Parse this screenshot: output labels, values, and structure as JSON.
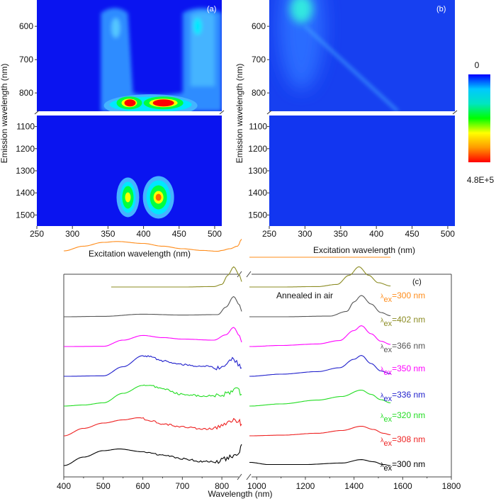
{
  "chart_data": [
    {
      "id": "a",
      "type": "heatmap",
      "panel_label": "(a)",
      "xlabel": "Excitation wavelength (nm)",
      "ylabel": "Emission wavelength (nm)",
      "xlim": [
        250,
        510
      ],
      "ylim_upper": [
        521,
        855
      ],
      "ylim_lower": [
        1050,
        1550
      ],
      "y_axis_break": [
        855,
        1050
      ],
      "x_ticks": [
        250,
        300,
        350,
        400,
        450,
        500
      ],
      "y_ticks_upper": [
        600,
        700,
        800
      ],
      "y_ticks_lower": [
        1100,
        1200,
        1300,
        1400,
        1500
      ],
      "peaks": [
        {
          "ex": 380,
          "em": 830,
          "level": 1.0
        },
        {
          "ex": 428,
          "em": 830,
          "level": 1.0
        },
        {
          "ex": 378,
          "em": 1420,
          "level": 0.8
        },
        {
          "ex": 421,
          "em": 1420,
          "level": 0.92
        },
        {
          "ex": 361,
          "em": 610,
          "level": 0.25
        },
        {
          "ex": 476,
          "em": 605,
          "level": 0.3
        }
      ],
      "background_level": 0
    },
    {
      "id": "b",
      "type": "heatmap",
      "panel_label": "(b)",
      "xlabel": "Excitation wavelength (nm)",
      "ylabel": "Emission wavelength (nm)",
      "xlim": [
        250,
        510
      ],
      "ylim_upper": [
        521,
        855
      ],
      "ylim_lower": [
        1050,
        1550
      ],
      "y_axis_break": [
        855,
        1050
      ],
      "x_ticks": [
        250,
        300,
        350,
        400,
        450,
        500
      ],
      "y_ticks_upper": [
        600,
        700,
        800
      ],
      "y_ticks_lower": [
        1100,
        1200,
        1300,
        1400,
        1500
      ],
      "peaks": [
        {
          "ex": 295,
          "em": 545,
          "level": 0.35
        }
      ],
      "scatter_line": {
        "from_ex": 300,
        "from_em": 600,
        "to_ex": 430,
        "to_em": 855
      },
      "background_level": 0.05
    },
    {
      "id": "colorbar",
      "type": "colorbar",
      "min_label": "0",
      "max_label": "4.8E+5",
      "min": 0,
      "max": 480000,
      "stops": [
        "#0000ff",
        "#00c8ff",
        "#00e5c0",
        "#00ff00",
        "#ffff00",
        "#ff9900",
        "#ff0000"
      ]
    },
    {
      "id": "c",
      "type": "line",
      "panel_label": "(c)",
      "annotation": "Annealed in air",
      "xlabel": "Wavelength (nm)",
      "ylabel": "",
      "x_axis_break": [
        850,
        970
      ],
      "xlim_left": [
        400,
        850
      ],
      "xlim_right": [
        970,
        1800
      ],
      "x_ticks_left": [
        400,
        500,
        600,
        700,
        800
      ],
      "x_ticks_right": [
        1000,
        1200,
        1400,
        1600,
        1800
      ],
      "legend_position": "right",
      "series": [
        {
          "name": "λex=300 nm",
          "lambda": "300 nm",
          "color": "#ff8c1a",
          "offset": 7,
          "left": {
            "x": [
              400,
              450,
              500,
              535,
              600,
              650,
              700,
              750,
              790,
              800,
              820,
              840,
              850
            ],
            "y": [
              0.3,
              0.52,
              0.7,
              0.74,
              0.65,
              0.52,
              0.4,
              0.32,
              0.28,
              0.32,
              0.4,
              0.52,
              0.85
            ]
          },
          "right": {
            "x": [
              970,
              1550
            ],
            "y": [
              0.0,
              0.0
            ]
          }
        },
        {
          "name": "λex=402 nm",
          "lambda": "402 nm",
          "color": "#8b8b22",
          "offset": 6,
          "left": {
            "x": [
              520,
              700,
              780,
              800,
              815,
              830,
              845,
              850
            ],
            "y": [
              0.0,
              0.0,
              0.02,
              0.12,
              0.55,
              0.95,
              0.55,
              0.25
            ]
          },
          "right": {
            "x": [
              970,
              1100,
              1250,
              1330,
              1380,
              1420,
              1460,
              1500,
              1550
            ],
            "y": [
              0.0,
              0.0,
              0.02,
              0.12,
              0.55,
              0.95,
              0.55,
              0.2,
              0.05
            ]
          }
        },
        {
          "name": "λex=366 nm",
          "lambda": "366 nm",
          "color": "#555555",
          "offset": 5,
          "left": {
            "x": [
              400,
              500,
              600,
              700,
              790,
              810,
              830,
              845,
              850
            ],
            "y": [
              0.0,
              0.02,
              0.12,
              0.08,
              0.1,
              0.45,
              0.95,
              0.55,
              0.25
            ]
          },
          "right": {
            "x": [
              970,
              1100,
              1300,
              1370,
              1400,
              1430,
              1470,
              1510,
              1550
            ],
            "y": [
              0.0,
              0.0,
              0.03,
              0.25,
              0.7,
              1.0,
              0.6,
              0.2,
              0.05
            ]
          }
        },
        {
          "name": "λex=350 nm",
          "lambda": "350 nm",
          "color": "#ff00ff",
          "offset": 4,
          "left": {
            "x": [
              400,
              500,
              550,
              600,
              650,
              700,
              780,
              810,
              830,
              845,
              850
            ],
            "y": [
              0.0,
              0.01,
              0.3,
              0.52,
              0.42,
              0.35,
              0.3,
              0.55,
              0.9,
              0.5,
              0.2
            ]
          },
          "right": {
            "x": [
              970,
              1100,
              1250,
              1340,
              1400,
              1430,
              1470,
              1510,
              1550
            ],
            "y": [
              0.0,
              0.05,
              0.12,
              0.28,
              0.75,
              0.98,
              0.6,
              0.25,
              0.1
            ]
          }
        },
        {
          "name": "λex=336 nm",
          "lambda": "336 nm",
          "color": "#2020cc",
          "offset": 3,
          "left": {
            "x": [
              400,
              500,
              550,
              600,
              620,
              650,
              700,
              750,
              790,
              810,
              830,
              845,
              850
            ],
            "y": [
              0.0,
              0.02,
              0.45,
              0.97,
              0.92,
              0.72,
              0.55,
              0.48,
              0.4,
              0.55,
              0.8,
              0.5,
              0.4
            ]
          },
          "right": {
            "x": [
              970,
              1100,
              1250,
              1340,
              1400,
              1430,
              1470,
              1510,
              1550
            ],
            "y": [
              0.0,
              0.1,
              0.22,
              0.4,
              0.8,
              0.98,
              0.6,
              0.25,
              0.12
            ]
          }
        },
        {
          "name": "λex=320 nm",
          "lambda": "320 nm",
          "color": "#22dd22",
          "offset": 2,
          "left": {
            "x": [
              400,
              450,
              500,
              550,
              600,
              620,
              650,
              700,
              750,
              790,
              820,
              840,
              850
            ],
            "y": [
              0.0,
              0.05,
              0.15,
              0.6,
              0.97,
              0.95,
              0.8,
              0.55,
              0.48,
              0.48,
              0.65,
              0.8,
              0.55
            ]
          },
          "right": {
            "x": [
              970,
              1100,
              1250,
              1350,
              1430,
              1470,
              1510,
              1550
            ],
            "y": [
              0.0,
              0.1,
              0.28,
              0.45,
              0.75,
              0.55,
              0.3,
              0.15
            ]
          }
        },
        {
          "name": "λex=308 nm",
          "lambda": "308 nm",
          "color": "#ee2222",
          "offset": 1,
          "left": {
            "x": [
              400,
              450,
              500,
              550,
              590,
              620,
              650,
              700,
              750,
              780,
              810,
              830,
              845,
              850
            ],
            "y": [
              0.0,
              0.35,
              0.6,
              0.75,
              0.85,
              0.72,
              0.55,
              0.42,
              0.32,
              0.35,
              0.6,
              0.8,
              0.65,
              0.55
            ]
          },
          "right": {
            "x": [
              970,
              1100,
              1250,
              1350,
              1430,
              1480,
              1520,
              1550
            ],
            "y": [
              0.0,
              0.03,
              0.12,
              0.25,
              0.45,
              0.3,
              0.12,
              0.05
            ]
          }
        },
        {
          "name": "λex=300 nm",
          "lambda": "300 nm",
          "color": "#000000",
          "offset": 0,
          "left": {
            "x": [
              400,
              450,
              500,
              540,
              600,
              650,
              700,
              750,
              780,
              810,
              830,
              845,
              850
            ],
            "y": [
              0.0,
              0.4,
              0.7,
              0.78,
              0.65,
              0.5,
              0.32,
              0.2,
              0.18,
              0.3,
              0.48,
              0.6,
              1.0
            ]
          },
          "right": {
            "x": [
              970,
              1050,
              1200,
              1350,
              1430,
              1480,
              1520,
              1550
            ],
            "y": [
              0.15,
              0.05,
              0.05,
              0.12,
              0.28,
              0.18,
              0.05,
              0.0
            ]
          }
        }
      ]
    }
  ]
}
